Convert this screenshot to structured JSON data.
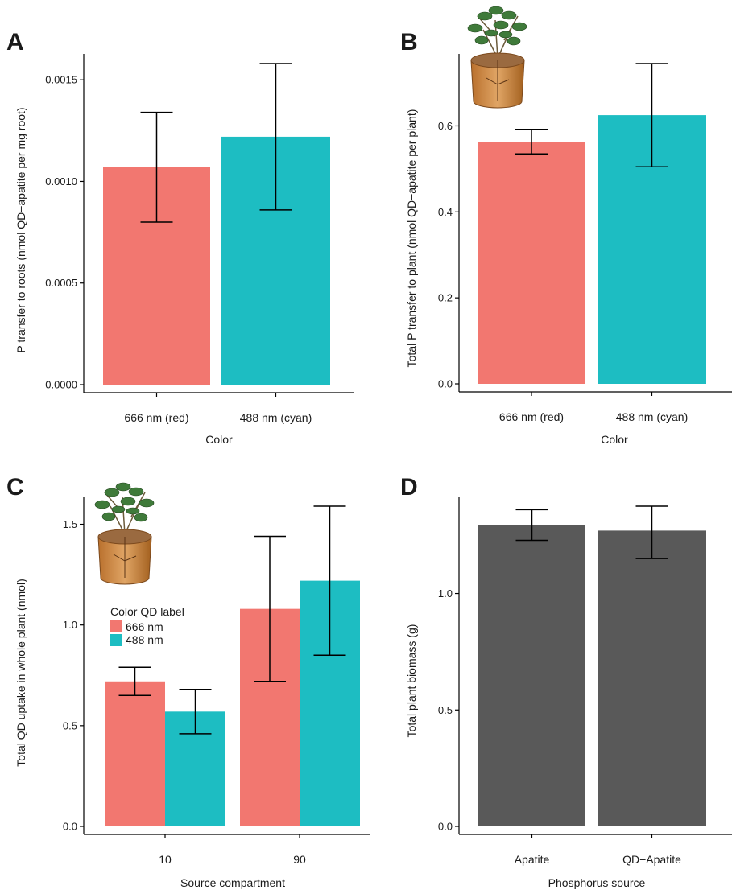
{
  "colors": {
    "red": "#F27770",
    "cyan": "#1DBDC2",
    "grey": "#595959",
    "axis": "#000000"
  },
  "chart_data": [
    {
      "panel": "A",
      "type": "bar",
      "categories": [
        "666 nm (red)",
        "488 nm (cyan)"
      ],
      "series": [
        {
          "values": [
            0.00107,
            0.00122
          ],
          "err_low": [
            0.0008,
            0.00086
          ],
          "err_high": [
            0.00134,
            0.00158
          ],
          "colors": [
            "#F27770",
            "#1DBDC2"
          ]
        }
      ],
      "ylim": [
        0,
        0.00158
      ],
      "yticks": [
        0,
        0.0005,
        0.001,
        0.0015
      ],
      "ytick_labels": [
        "0.0000",
        "0.0005",
        "0.0010",
        "0.0015"
      ],
      "xlabel": "Color",
      "ylabel": "P transfer to roots (nmol QD−apatite per mg root)"
    },
    {
      "panel": "B",
      "type": "bar",
      "categories": [
        "666 nm (red)",
        "488 nm (cyan)"
      ],
      "series": [
        {
          "values": [
            0.563,
            0.625
          ],
          "err_low": [
            0.535,
            0.505
          ],
          "err_high": [
            0.592,
            0.745
          ],
          "colors": [
            "#F27770",
            "#1DBDC2"
          ]
        }
      ],
      "ylim": [
        0,
        0.745
      ],
      "yticks": [
        0,
        0.2,
        0.4,
        0.6
      ],
      "ytick_labels": [
        "0.0",
        "0.2",
        "0.4",
        "0.6"
      ],
      "xlabel": "Color",
      "ylabel": "Total P transfer to plant (nmol QD−apatite per plant)",
      "icon": "potted-plant-icon"
    },
    {
      "panel": "C",
      "type": "bar",
      "categories": [
        "10",
        "90"
      ],
      "series": [
        {
          "name": "666 nm",
          "color": "#F27770",
          "values": [
            0.72,
            1.08
          ],
          "err_low": [
            0.65,
            0.72
          ],
          "err_high": [
            0.79,
            1.44
          ]
        },
        {
          "name": "488 nm",
          "color": "#1DBDC2",
          "values": [
            0.57,
            1.22
          ],
          "err_low": [
            0.46,
            0.85
          ],
          "err_high": [
            0.68,
            1.59
          ]
        }
      ],
      "ylim": [
        0,
        1.59
      ],
      "yticks": [
        0,
        0.5,
        1.0,
        1.5
      ],
      "ytick_labels": [
        "0.0",
        "0.5",
        "1.0",
        "1.5"
      ],
      "xlabel": "Source compartment",
      "ylabel": "Total QD uptake in whole plant (nmol)",
      "legend_title": "Color QD label",
      "legend_position": "top-left",
      "icon": "potted-plant-icon"
    },
    {
      "panel": "D",
      "type": "bar",
      "categories": [
        "Apatite",
        "QD−Apatite"
      ],
      "series": [
        {
          "values": [
            1.295,
            1.27
          ],
          "err_low": [
            1.228,
            1.15
          ],
          "err_high": [
            1.36,
            1.375
          ],
          "colors": [
            "#595959",
            "#595959"
          ]
        }
      ],
      "ylim": [
        0,
        1.375
      ],
      "yticks": [
        0,
        0.5,
        1.0
      ],
      "ytick_labels": [
        "0.0",
        "0.5",
        "1.0"
      ],
      "xlabel": "Phosphorus source",
      "ylabel": "Total plant biomass (g)"
    }
  ]
}
